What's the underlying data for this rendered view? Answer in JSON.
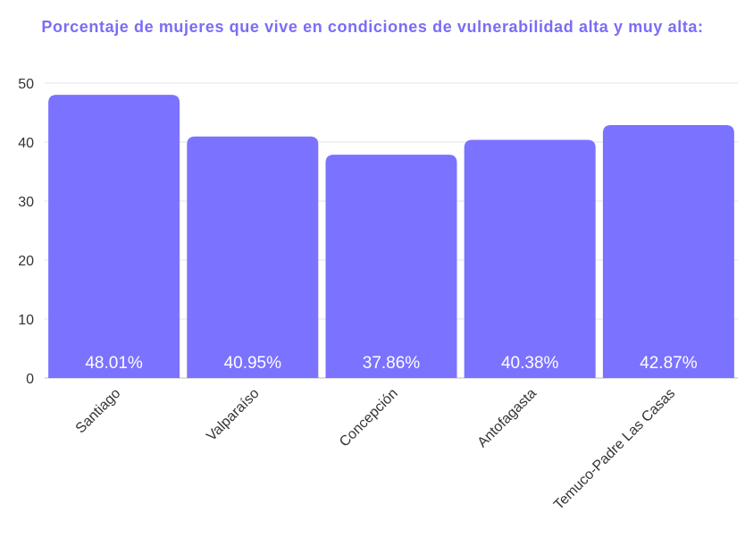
{
  "chart_data": {
    "type": "bar",
    "title": "Porcentaje de mujeres que vive en condiciones de vulnerabilidad alta y muy alta:",
    "categories": [
      "Santiago",
      "Valparaíso",
      "Concepción",
      "Antofagasta",
      "Temuco-Padre Las Casas"
    ],
    "values": [
      48.01,
      40.95,
      37.86,
      40.38,
      42.87
    ],
    "data_labels": [
      "48.01%",
      "40.95%",
      "37.86%",
      "40.38%",
      "42.87%"
    ],
    "y_ticks": [
      "0",
      "10",
      "20",
      "30",
      "40",
      "50"
    ],
    "ylim": [
      0,
      50
    ],
    "grid": true,
    "legend": "none",
    "bar_color": "#7b72ff",
    "title_color": "#7b6cf6"
  }
}
